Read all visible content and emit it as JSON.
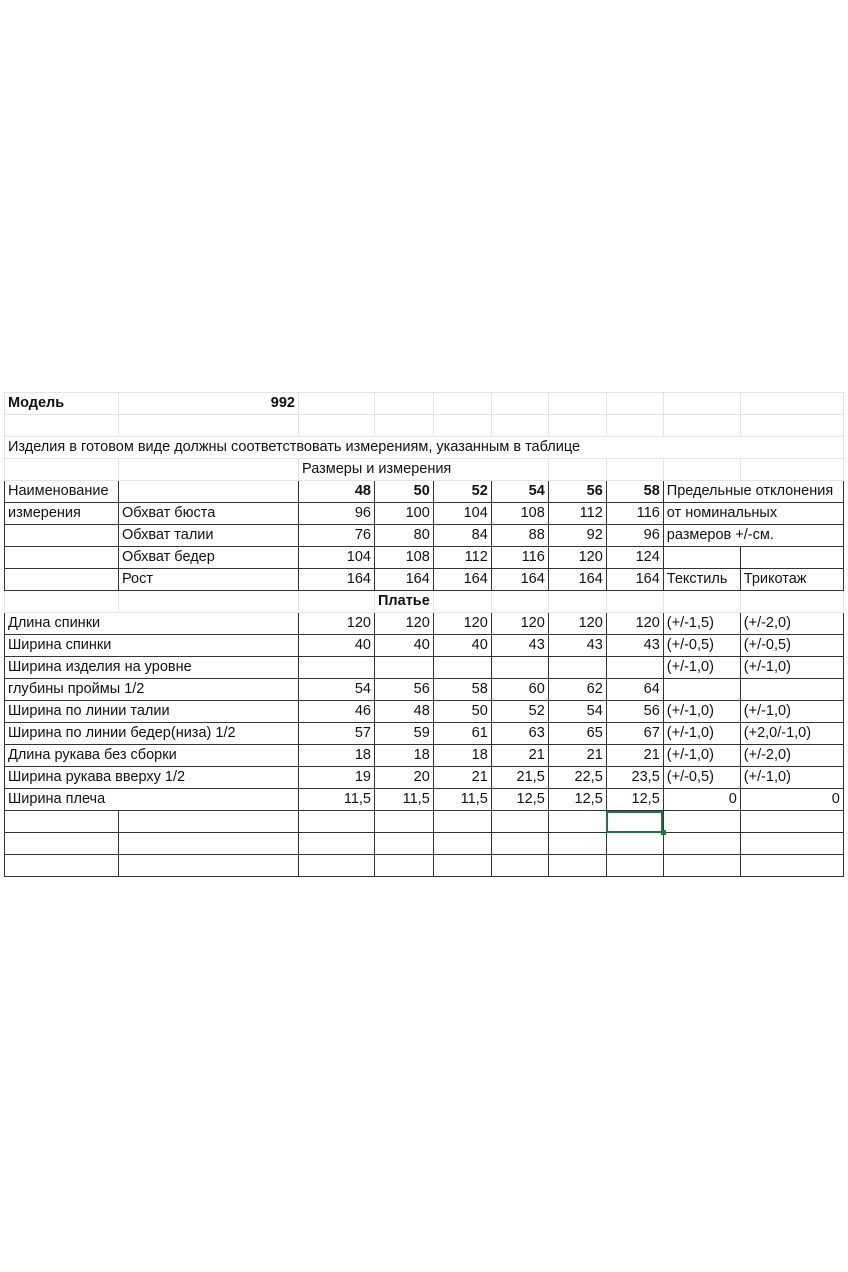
{
  "model": {
    "label": "Модель",
    "value": "992"
  },
  "note": "Изделия в готовом виде должны соответствовать измерениям, указанным в таблице",
  "section_title": "Размеры и измерения",
  "header": {
    "name_label_1": "Наименование",
    "name_label_2": "измерения",
    "sizes": [
      "48",
      "50",
      "52",
      "54",
      "56",
      "58"
    ],
    "deviation_1": "Предельные отклонения",
    "deviation_2": "от номинальных",
    "deviation_3": "размеров +/-см."
  },
  "body_measurements": [
    {
      "name": "Обхват бюста",
      "values": [
        "96",
        "100",
        "104",
        "108",
        "112",
        "116"
      ]
    },
    {
      "name": "Обхват талии",
      "values": [
        "76",
        "80",
        "84",
        "88",
        "92",
        "96"
      ]
    },
    {
      "name": "Обхват бедер",
      "values": [
        "104",
        "108",
        "112",
        "116",
        "120",
        "124"
      ]
    },
    {
      "name": "Рост",
      "values": [
        "164",
        "164",
        "164",
        "164",
        "164",
        "164"
      ]
    }
  ],
  "fabric_labels": {
    "textile": "Текстиль",
    "knit": "Трикотаж"
  },
  "product_title": "Платье",
  "product_rows": [
    {
      "name": "Длина спинки",
      "values": [
        "120",
        "120",
        "120",
        "120",
        "120",
        "120"
      ],
      "textile": "(+/-1,5)",
      "knit": "(+/-2,0)"
    },
    {
      "name": "Ширина спинки",
      "values": [
        "40",
        "40",
        "40",
        "43",
        "43",
        "43"
      ],
      "textile": "(+/-0,5)",
      "knit": "(+/-0,5)"
    },
    {
      "name": "Ширина изделия на уровне",
      "values": [
        "",
        "",
        "",
        "",
        "",
        ""
      ],
      "textile": "(+/-1,0)",
      "knit": "(+/-1,0)"
    },
    {
      "name": "глубины проймы 1/2",
      "values": [
        "54",
        "56",
        "58",
        "60",
        "62",
        "64"
      ],
      "textile": "",
      "knit": ""
    },
    {
      "name": "Ширина по линии талии",
      "values": [
        "46",
        "48",
        "50",
        "52",
        "54",
        "56"
      ],
      "textile": "(+/-1,0)",
      "knit": "(+/-1,0)"
    },
    {
      "name": "Ширина по линии бедер(низа) 1/2",
      "values": [
        "57",
        "59",
        "61",
        "63",
        "65",
        "67"
      ],
      "textile": "(+/-1,0)",
      "knit": "(+2,0/-1,0)"
    },
    {
      "name": "Длина рукава без сборки",
      "values": [
        "18",
        "18",
        "18",
        "21",
        "21",
        "21"
      ],
      "textile": "(+/-1,0)",
      "knit": "(+/-2,0)"
    },
    {
      "name": "Ширина рукава вверху 1/2",
      "values": [
        "19",
        "20",
        "21",
        "21,5",
        "22,5",
        "23,5"
      ],
      "textile": "(+/-0,5)",
      "knit": "(+/-1,0)"
    },
    {
      "name": "Ширина плеча",
      "values": [
        "11,5",
        "11,5",
        "11,5",
        "12,5",
        "12,5",
        "12,5"
      ],
      "textile": "0",
      "knit": "0"
    }
  ],
  "selection_color": "#217346"
}
